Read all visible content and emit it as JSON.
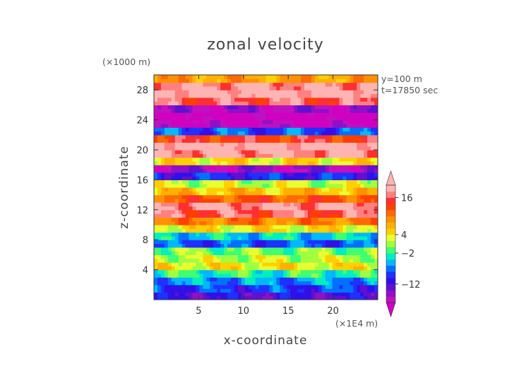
{
  "chart_data": {
    "type": "heatmap",
    "title": "zonal velocity",
    "xlabel": "x-coordinate",
    "ylabel": "z-coordinate",
    "x_unit": "(×1E4 m)",
    "y_unit": "(×1000 m)",
    "annotations": [
      "y=100 m",
      "t=17850 sec"
    ],
    "xlim": [
      0,
      25
    ],
    "ylim": [
      0,
      30
    ],
    "xticks": [
      5,
      10,
      15,
      20
    ],
    "yticks": [
      4,
      8,
      12,
      16,
      20,
      24,
      28
    ],
    "colorbar": {
      "ticks": [
        16,
        4,
        -2,
        -12
      ],
      "levels": [
        {
          "min": 18,
          "color": "#ffb4b4"
        },
        {
          "min": 16,
          "color": "#ff8080"
        },
        {
          "min": 14,
          "color": "#ff3030"
        },
        {
          "min": 12,
          "color": "#ff4000"
        },
        {
          "min": 10,
          "color": "#ff6a00"
        },
        {
          "min": 8,
          "color": "#ff9000"
        },
        {
          "min": 6,
          "color": "#ffb000"
        },
        {
          "min": 4,
          "color": "#ffd000"
        },
        {
          "min": 2,
          "color": "#e8ff30"
        },
        {
          "min": 0,
          "color": "#a0ff40"
        },
        {
          "min": -2,
          "color": "#40ff70"
        },
        {
          "min": -4,
          "color": "#00eec0"
        },
        {
          "min": -6,
          "color": "#00b8ff"
        },
        {
          "min": -8,
          "color": "#0070ff"
        },
        {
          "min": -10,
          "color": "#2030ff"
        },
        {
          "min": -12,
          "color": "#3010e8"
        },
        {
          "min": -14,
          "color": "#6010d0"
        },
        {
          "min": -16,
          "color": "#9010c8"
        },
        {
          "min": -18,
          "color": "#c010c0"
        }
      ],
      "under_color": "#d000c0",
      "over_color": "#ffb4b4"
    },
    "bands": [
      {
        "z": 0.5,
        "u": -12
      },
      {
        "z": 1.5,
        "u": -9
      },
      {
        "z": 2.5,
        "u": -6
      },
      {
        "z": 3.5,
        "u": -2
      },
      {
        "z": 4.5,
        "u": 4
      },
      {
        "z": 5.5,
        "u": 2
      },
      {
        "z": 6.5,
        "u": 0
      },
      {
        "z": 7.5,
        "u": -8
      },
      {
        "z": 8.5,
        "u": -4
      },
      {
        "z": 9.5,
        "u": 4
      },
      {
        "z": 10.5,
        "u": 10
      },
      {
        "z": 11.5,
        "u": 16
      },
      {
        "z": 12.5,
        "u": 18
      },
      {
        "z": 13.5,
        "u": 12
      },
      {
        "z": 14.5,
        "u": 6
      },
      {
        "z": 15.5,
        "u": 2
      },
      {
        "z": 16.5,
        "u": -10
      },
      {
        "z": 17.5,
        "u": -16
      },
      {
        "z": 18.5,
        "u": 4
      },
      {
        "z": 19.5,
        "u": 18
      },
      {
        "z": 20.5,
        "u": 20
      },
      {
        "z": 21.5,
        "u": 14
      },
      {
        "z": 22.5,
        "u": -8
      },
      {
        "z": 23.5,
        "u": -18
      },
      {
        "z": 24.5,
        "u": -20
      },
      {
        "z": 25.5,
        "u": -16
      },
      {
        "z": 26.5,
        "u": 16
      },
      {
        "z": 27.5,
        "u": 20
      },
      {
        "z": 28.5,
        "u": 18
      },
      {
        "z": 29.5,
        "u": 8
      }
    ]
  }
}
